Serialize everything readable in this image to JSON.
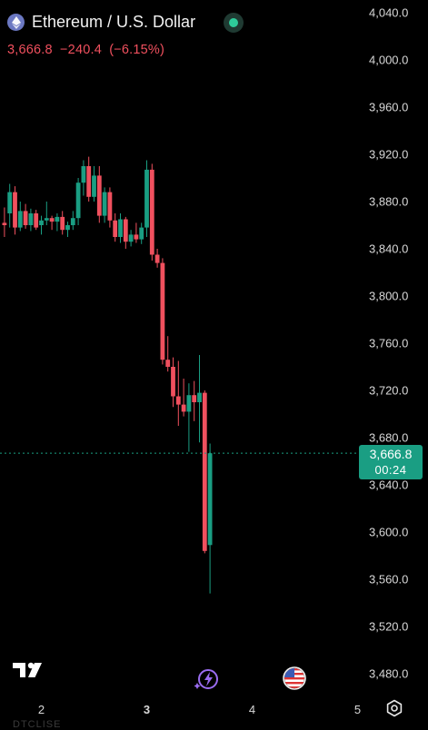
{
  "header": {
    "title": "Ethereum / U.S. Dollar",
    "price": "3,666.8",
    "change": "−240.4",
    "change_pct": "(−6.15%)",
    "icon": "ethereum-icon",
    "status_icon": "live-dot-icon"
  },
  "price_tag": {
    "price": "3,666.8",
    "countdown": "00:24"
  },
  "colors": {
    "up": "#1a9e83",
    "down": "#f0505e",
    "background": "#000000"
  },
  "bottom_icons": [
    "tradingview-logo",
    "bolt-icon",
    "us-flag-icon",
    "settings-icon"
  ],
  "faded_text": "DTCLISE",
  "chart_data": {
    "type": "candlestick",
    "title": "Ethereum / U.S. Dollar",
    "ylim": [
      3440,
      4060
    ],
    "yticks": [
      "4,040.0",
      "4,000.0",
      "3,960.0",
      "3,920.0",
      "3,880.0",
      "3,840.0",
      "3,800.0",
      "3,760.0",
      "3,720.0",
      "3,680.0",
      "3,640.0",
      "3,600.0",
      "3,560.0",
      "3,520.0",
      "3,480.0"
    ],
    "ytick_values": [
      4040,
      4000,
      3960,
      3920,
      3880,
      3840,
      3800,
      3760,
      3720,
      3680,
      3640,
      3600,
      3560,
      3520,
      3480
    ],
    "xticks": [
      {
        "label": "2",
        "index": 7,
        "bold": false
      },
      {
        "label": "3",
        "index": 27,
        "bold": true
      },
      {
        "label": "4",
        "index": 47,
        "bold": false
      },
      {
        "label": "5",
        "index": 67,
        "bold": false
      }
    ],
    "last_price": 3666.8,
    "candles": [
      {
        "o": 3862,
        "h": 3875,
        "l": 3850,
        "c": 3860
      },
      {
        "o": 3870,
        "h": 3895,
        "l": 3858,
        "c": 3888
      },
      {
        "o": 3888,
        "h": 3893,
        "l": 3852,
        "c": 3858
      },
      {
        "o": 3858,
        "h": 3880,
        "l": 3855,
        "c": 3872
      },
      {
        "o": 3872,
        "h": 3878,
        "l": 3857,
        "c": 3860
      },
      {
        "o": 3860,
        "h": 3874,
        "l": 3855,
        "c": 3870
      },
      {
        "o": 3870,
        "h": 3873,
        "l": 3856,
        "c": 3858
      },
      {
        "o": 3860,
        "h": 3868,
        "l": 3852,
        "c": 3864
      },
      {
        "o": 3864,
        "h": 3880,
        "l": 3860,
        "c": 3866
      },
      {
        "o": 3866,
        "h": 3868,
        "l": 3856,
        "c": 3863
      },
      {
        "o": 3863,
        "h": 3870,
        "l": 3855,
        "c": 3867
      },
      {
        "o": 3867,
        "h": 3872,
        "l": 3852,
        "c": 3856
      },
      {
        "o": 3856,
        "h": 3863,
        "l": 3850,
        "c": 3860
      },
      {
        "o": 3860,
        "h": 3872,
        "l": 3856,
        "c": 3866
      },
      {
        "o": 3866,
        "h": 3900,
        "l": 3860,
        "c": 3896
      },
      {
        "o": 3896,
        "h": 3915,
        "l": 3885,
        "c": 3910
      },
      {
        "o": 3910,
        "h": 3918,
        "l": 3880,
        "c": 3884
      },
      {
        "o": 3884,
        "h": 3910,
        "l": 3880,
        "c": 3902
      },
      {
        "o": 3902,
        "h": 3910,
        "l": 3862,
        "c": 3868
      },
      {
        "o": 3868,
        "h": 3892,
        "l": 3862,
        "c": 3888
      },
      {
        "o": 3888,
        "h": 3892,
        "l": 3858,
        "c": 3864
      },
      {
        "o": 3864,
        "h": 3870,
        "l": 3846,
        "c": 3850
      },
      {
        "o": 3850,
        "h": 3870,
        "l": 3845,
        "c": 3865
      },
      {
        "o": 3865,
        "h": 3867,
        "l": 3840,
        "c": 3846
      },
      {
        "o": 3846,
        "h": 3856,
        "l": 3842,
        "c": 3852
      },
      {
        "o": 3852,
        "h": 3862,
        "l": 3845,
        "c": 3848
      },
      {
        "o": 3848,
        "h": 3862,
        "l": 3844,
        "c": 3858
      },
      {
        "o": 3858,
        "h": 3915,
        "l": 3850,
        "c": 3907
      },
      {
        "o": 3907,
        "h": 3912,
        "l": 3830,
        "c": 3835
      },
      {
        "o": 3835,
        "h": 3840,
        "l": 3824,
        "c": 3828
      },
      {
        "o": 3828,
        "h": 3832,
        "l": 3742,
        "c": 3746
      },
      {
        "o": 3746,
        "h": 3766,
        "l": 3736,
        "c": 3740
      },
      {
        "o": 3740,
        "h": 3748,
        "l": 3706,
        "c": 3715
      },
      {
        "o": 3715,
        "h": 3745,
        "l": 3690,
        "c": 3708
      },
      {
        "o": 3708,
        "h": 3730,
        "l": 3698,
        "c": 3702
      },
      {
        "o": 3702,
        "h": 3726,
        "l": 3668,
        "c": 3716
      },
      {
        "o": 3716,
        "h": 3728,
        "l": 3694,
        "c": 3710
      },
      {
        "o": 3710,
        "h": 3750,
        "l": 3676,
        "c": 3718
      },
      {
        "o": 3718,
        "h": 3720,
        "l": 3582,
        "c": 3584
      },
      {
        "o": 3589,
        "h": 3675,
        "l": 3548,
        "c": 3666.8
      }
    ]
  }
}
